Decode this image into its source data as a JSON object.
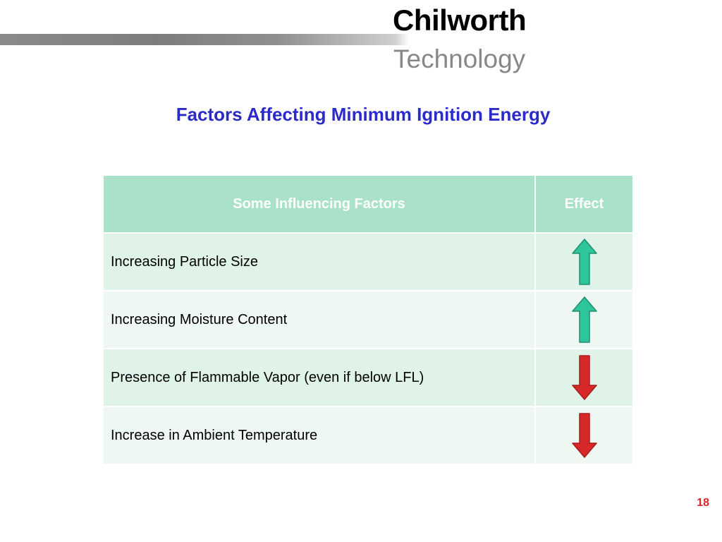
{
  "brand": {
    "name_line1": "Chilworth",
    "name_line2": "Technology"
  },
  "slide": {
    "title": "Factors Affecting Minimum Ignition Energy",
    "page_number": "18"
  },
  "table": {
    "headers": [
      "Some Influencing Factors",
      "Effect"
    ],
    "rows": [
      {
        "factor": "Increasing Particle Size",
        "effect": "increase",
        "effect_icon": "up-arrow-icon",
        "arrow_color": "#2ec59a"
      },
      {
        "factor": "Increasing Moisture Content",
        "effect": "increase",
        "effect_icon": "up-arrow-icon",
        "arrow_color": "#2ec59a"
      },
      {
        "factor": "Presence of Flammable Vapor (even if below LFL)",
        "effect": "decrease",
        "effect_icon": "down-arrow-icon",
        "arrow_color": "#d62828"
      },
      {
        "factor": "Increase in Ambient Temperature",
        "effect": "decrease",
        "effect_icon": "down-arrow-icon",
        "arrow_color": "#d62828"
      }
    ]
  },
  "colors": {
    "title": "#2b2bc9",
    "header_bg": "#a9e2c8",
    "row_odd_bg": "#dff3e8",
    "row_even_bg": "#eef7f2",
    "page_number": "#d9242b"
  }
}
